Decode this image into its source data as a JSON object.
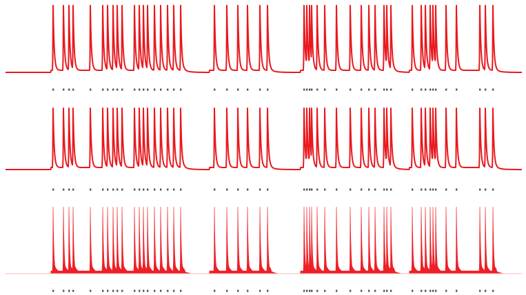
{
  "chart_data": {
    "type": "line",
    "title": "",
    "xlabel": "",
    "ylabel": "",
    "grid": false,
    "legend": "none",
    "colors": {
      "trace": "#e8191e",
      "fill": "#ee2027",
      "raster": "#555555"
    },
    "spike_times": [
      77,
      92,
      100,
      106,
      131,
      149,
      156,
      164,
      170,
      177,
      195,
      202,
      208,
      214,
      224,
      233,
      243,
      252,
      262,
      311,
      329,
      345,
      359,
      377,
      388,
      441,
      445,
      449,
      452,
      460,
      471,
      488,
      508,
      524,
      535,
      544,
      557,
      561,
      567,
      598,
      611,
      617,
      624,
      628,
      632,
      647,
      662,
      696,
      704,
      715
    ],
    "epochs": [
      {
        "start": 74,
        "end": 268
      },
      {
        "start": 304,
        "end": 393
      },
      {
        "start": 436,
        "end": 572
      },
      {
        "start": 594,
        "end": 720
      }
    ],
    "series": [
      {
        "kind": "membrane-potential-trace"
      },
      {
        "kind": "membrane-potential-trace"
      },
      {
        "kind": "filled-activity-trace"
      }
    ]
  }
}
